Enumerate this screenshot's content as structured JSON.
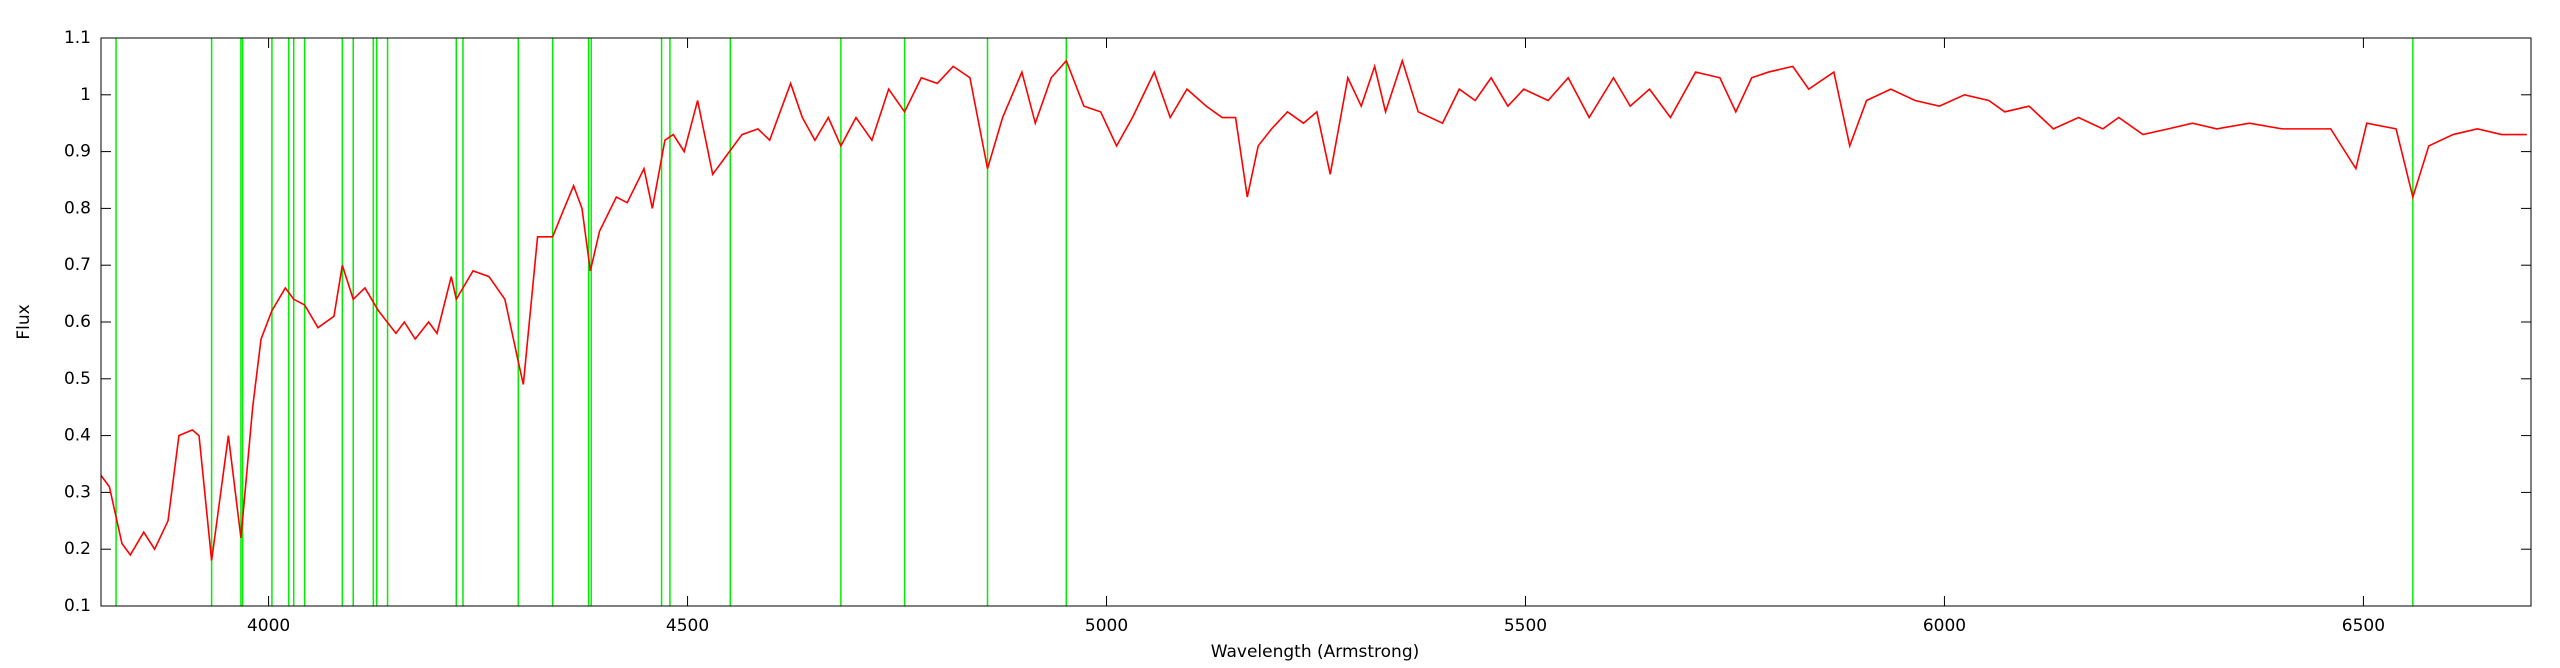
{
  "chart_data": {
    "type": "line",
    "xlabel": "Wavelength (Armstrong)",
    "ylabel": "Flux",
    "xlim": [
      3800,
      6700
    ],
    "ylim": [
      0.1,
      1.1
    ],
    "xticks": [
      4000,
      4500,
      5000,
      5500,
      6000,
      6500
    ],
    "yticks": [
      0.1,
      0.2,
      0.3,
      0.4,
      0.5,
      0.6,
      0.7,
      0.8,
      0.9,
      1,
      1.1
    ],
    "grid": false,
    "line_markers": [
      3818,
      3932,
      3967,
      3969,
      4004,
      4024,
      4030,
      4043,
      4088,
      4101,
      4125,
      4129,
      4142,
      4224,
      4232,
      4298,
      4339,
      4382,
      4385,
      4469,
      4479,
      4551,
      4683,
      4759,
      4858,
      4952,
      6559
    ],
    "line_marker_color": "#00ee00",
    "series": [
      {
        "color": "#ff0000",
        "x": [
          3800,
          3810,
          3825,
          3835,
          3851,
          3864,
          3880,
          3893,
          3909,
          3917,
          3932,
          3952,
          3967,
          3981,
          3991,
          4004,
          4020,
          4030,
          4043,
          4059,
          4078,
          4088,
          4101,
          4115,
          4131,
          4152,
          4162,
          4175,
          4191,
          4201,
          4218,
          4224,
          4244,
          4263,
          4282,
          4298,
          4304,
          4321,
          4339,
          4350,
          4364,
          4374,
          4384,
          4395,
          4415,
          4428,
          4448,
          4458,
          4473,
          4483,
          4496,
          4512,
          4530,
          4545,
          4565,
          4584,
          4598,
          4623,
          4637,
          4652,
          4668,
          4683,
          4701,
          4720,
          4740,
          4759,
          4779,
          4798,
          4817,
          4837,
          4858,
          4876,
          4899,
          4915,
          4934,
          4952,
          4973,
          4993,
          5012,
          5031,
          5057,
          5076,
          5096,
          5119,
          5138,
          5154,
          5168,
          5181,
          5197,
          5216,
          5235,
          5251,
          5267,
          5288,
          5304,
          5320,
          5333,
          5353,
          5372,
          5401,
          5421,
          5440,
          5459,
          5479,
          5498,
          5527,
          5551,
          5576,
          5605,
          5625,
          5648,
          5673,
          5703,
          5732,
          5751,
          5770,
          5790,
          5819,
          5838,
          5868,
          5887,
          5907,
          5936,
          5965,
          5994,
          6024,
          6053,
          6072,
          6101,
          6130,
          6160,
          6189,
          6208,
          6237,
          6267,
          6296,
          6325,
          6364,
          6403,
          6461,
          6491,
          6504,
          6539,
          6559,
          6578,
          6607,
          6636,
          6665,
          6695
        ],
        "values": [
          0.33,
          0.31,
          0.21,
          0.19,
          0.23,
          0.2,
          0.25,
          0.4,
          0.41,
          0.4,
          0.18,
          0.4,
          0.22,
          0.45,
          0.57,
          0.62,
          0.66,
          0.64,
          0.63,
          0.59,
          0.61,
          0.7,
          0.64,
          0.66,
          0.62,
          0.58,
          0.6,
          0.57,
          0.6,
          0.58,
          0.68,
          0.64,
          0.69,
          0.68,
          0.64,
          0.53,
          0.49,
          0.75,
          0.75,
          0.79,
          0.84,
          0.8,
          0.69,
          0.76,
          0.82,
          0.81,
          0.87,
          0.8,
          0.92,
          0.93,
          0.9,
          0.99,
          0.86,
          0.89,
          0.93,
          0.94,
          0.92,
          1.02,
          0.96,
          0.92,
          0.96,
          0.91,
          0.96,
          0.92,
          1.01,
          0.97,
          1.03,
          1.02,
          1.05,
          1.03,
          0.87,
          0.96,
          1.04,
          0.95,
          1.03,
          1.06,
          0.98,
          0.97,
          0.91,
          0.96,
          1.04,
          0.96,
          1.01,
          0.98,
          0.96,
          0.96,
          0.82,
          0.91,
          0.94,
          0.97,
          0.95,
          0.97,
          0.86,
          1.03,
          0.98,
          1.05,
          0.97,
          1.06,
          0.97,
          0.95,
          1.01,
          0.99,
          1.03,
          0.98,
          1.01,
          0.99,
          1.03,
          0.96,
          1.03,
          0.98,
          1.01,
          0.96,
          1.04,
          1.03,
          0.97,
          1.03,
          1.04,
          1.05,
          1.01,
          1.04,
          0.91,
          0.99,
          1.01,
          0.99,
          0.98,
          1.0,
          0.99,
          0.97,
          0.98,
          0.94,
          0.96,
          0.94,
          0.96,
          0.93,
          0.94,
          0.95,
          0.94,
          0.95,
          0.94,
          0.94,
          0.87,
          0.95,
          0.94,
          0.82,
          0.91,
          0.93,
          0.94,
          0.93,
          0.93
        ]
      }
    ]
  }
}
